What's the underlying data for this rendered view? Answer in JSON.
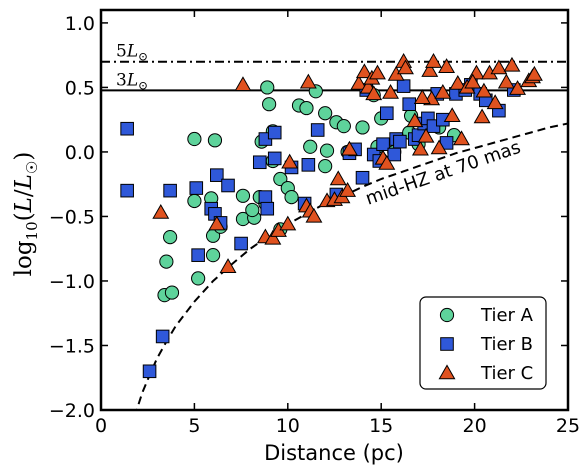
{
  "chart_data": {
    "type": "scatter",
    "xlabel": "Distance (pc)",
    "ylabel": "log10(L/L☉)",
    "ylabel_parts": {
      "pre": "log",
      "sub": "10",
      "paren_open": "(",
      "L": "L",
      "slash": "/",
      "Lsun": "L",
      "sun": "☉",
      "paren_close": ")"
    },
    "xlim": [
      0,
      25
    ],
    "ylim": [
      -2.0,
      1.1
    ],
    "xticks": [
      0,
      5,
      10,
      15,
      20,
      25
    ],
    "xtick_labels": [
      "0",
      "5",
      "10",
      "15",
      "20",
      "25"
    ],
    "yticks": [
      -2.0,
      -1.5,
      -1.0,
      -0.5,
      0.0,
      0.5,
      1.0
    ],
    "ytick_labels": [
      "−2.0",
      "−1.5",
      "−1.0",
      "−0.5",
      "0.0",
      "0.5",
      "1.0"
    ],
    "grid": false,
    "legend_position": "bottom-right",
    "reference_lines": [
      {
        "y": 0.699,
        "style": "dashdot",
        "label_main": "5L",
        "label_sub": "⊙"
      },
      {
        "y": 0.477,
        "style": "solid",
        "label_main": "3L",
        "label_sub": "⊙"
      }
    ],
    "hz_curve": {
      "label": "mid-HZ at 70 mas",
      "x": [
        1.8,
        2.2,
        2.6,
        3.0,
        3.5,
        4.0,
        5.0,
        6.0,
        7.0,
        8.0,
        9.0,
        10.0,
        11.0,
        12.0,
        13.0,
        14.0,
        15.0,
        16.0,
        17.0,
        18.0,
        19.0,
        20.0,
        21.0,
        22.0,
        23.0,
        24.0,
        25.0
      ],
      "y": [
        -2.05,
        -1.87,
        -1.73,
        -1.6,
        -1.47,
        -1.35,
        -1.16,
        -1.0,
        -0.87,
        -0.75,
        -0.65,
        -0.56,
        -0.48,
        -0.4,
        -0.34,
        -0.27,
        -0.21,
        -0.16,
        -0.11,
        -0.06,
        -0.01,
        0.03,
        0.07,
        0.11,
        0.15,
        0.19,
        0.22
      ]
    },
    "series": [
      {
        "name": "Tier A",
        "marker": "circle",
        "color": "#5ed39b",
        "points": [
          [
            3.4,
            -1.11
          ],
          [
            3.8,
            -1.09
          ],
          [
            3.5,
            -0.85
          ],
          [
            3.7,
            -0.66
          ],
          [
            5.0,
            0.1
          ],
          [
            6.1,
            0.09
          ],
          [
            5.2,
            -0.98
          ],
          [
            5.0,
            -0.38
          ],
          [
            5.9,
            -0.36
          ],
          [
            6.0,
            -0.65
          ],
          [
            6.0,
            -0.8
          ],
          [
            6.4,
            -0.58
          ],
          [
            7.6,
            -0.52
          ],
          [
            7.6,
            -0.34
          ],
          [
            8.2,
            -0.51
          ],
          [
            8.1,
            -0.45
          ],
          [
            8.5,
            -0.35
          ],
          [
            8.6,
            0.08
          ],
          [
            8.8,
            -0.4
          ],
          [
            8.9,
            0.5
          ],
          [
            9.2,
            -0.07
          ],
          [
            9.2,
            0.16
          ],
          [
            9.6,
            -0.21
          ],
          [
            9.6,
            -0.6
          ],
          [
            9.0,
            0.37
          ],
          [
            10.0,
            -0.28
          ],
          [
            10.2,
            -0.35
          ],
          [
            10.6,
            0.36
          ],
          [
            11.0,
            0.34
          ],
          [
            11.5,
            0.47
          ],
          [
            11.2,
            0.04
          ],
          [
            12.0,
            0.3
          ],
          [
            12.0,
            -0.11
          ],
          [
            12.6,
            0.23
          ],
          [
            13.0,
            0.2
          ],
          [
            13.2,
            0.0
          ],
          [
            14.0,
            0.19
          ],
          [
            14.6,
            0.44
          ],
          [
            14.8,
            0.04
          ],
          [
            15.0,
            0.26
          ],
          [
            15.7,
            0.0
          ],
          [
            16.5,
            0.15
          ],
          [
            16.6,
            0.28
          ],
          [
            17.0,
            0.06
          ],
          [
            18.1,
            0.19
          ],
          [
            18.9,
            0.13
          ],
          [
            12.1,
            0.01
          ]
        ]
      },
      {
        "name": "Tier B",
        "marker": "square",
        "color": "#2f58d9",
        "points": [
          [
            1.4,
            0.18
          ],
          [
            1.4,
            -0.3
          ],
          [
            2.6,
            -1.7
          ],
          [
            3.3,
            -1.43
          ],
          [
            3.7,
            -0.3
          ],
          [
            5.1,
            -0.28
          ],
          [
            5.2,
            -0.8
          ],
          [
            5.9,
            -0.44
          ],
          [
            6.1,
            -0.48
          ],
          [
            6.2,
            -0.18
          ],
          [
            6.4,
            -0.55
          ],
          [
            6.8,
            -0.26
          ],
          [
            7.5,
            -0.71
          ],
          [
            8.5,
            -0.08
          ],
          [
            8.8,
            -0.35
          ],
          [
            8.8,
            0.1
          ],
          [
            8.9,
            -0.44
          ],
          [
            9.3,
            0.15
          ],
          [
            9.3,
            -0.05
          ],
          [
            10.2,
            -0.12
          ],
          [
            11.1,
            -0.1
          ],
          [
            11.6,
            0.17
          ],
          [
            12.6,
            -0.33
          ],
          [
            13.3,
            -0.01
          ],
          [
            13.6,
            0.02
          ],
          [
            14.0,
            -0.2
          ],
          [
            14.2,
            0.48
          ],
          [
            14.6,
            -0.02
          ],
          [
            14.9,
            -0.07
          ],
          [
            15.1,
            0.06
          ],
          [
            15.3,
            0.3
          ],
          [
            15.7,
            -0.02
          ],
          [
            15.8,
            0.1
          ],
          [
            16.0,
            0.08
          ],
          [
            16.2,
            0.51
          ],
          [
            16.5,
            0.37
          ],
          [
            16.8,
            0.1
          ],
          [
            17.0,
            0.13
          ],
          [
            17.3,
            0.22
          ],
          [
            17.5,
            0.26
          ],
          [
            17.8,
            0.2
          ],
          [
            18.0,
            0.45
          ],
          [
            18.5,
            0.07
          ],
          [
            19.0,
            0.45
          ],
          [
            19.5,
            0.48
          ],
          [
            19.8,
            0.52
          ],
          [
            20.3,
            0.45
          ],
          [
            20.6,
            0.4
          ],
          [
            21.3,
            0.32
          ],
          [
            22.1,
            0.48
          ],
          [
            18.3,
            0.25
          ],
          [
            10.9,
            -0.4
          ]
        ]
      },
      {
        "name": "Tier C",
        "marker": "triangle",
        "color": "#e0521f",
        "points": [
          [
            3.2,
            -0.47
          ],
          [
            6.2,
            -0.56
          ],
          [
            6.8,
            -0.89
          ],
          [
            7.6,
            0.52
          ],
          [
            8.8,
            -0.66
          ],
          [
            9.2,
            -0.67
          ],
          [
            9.5,
            -0.61
          ],
          [
            10.0,
            -0.56
          ],
          [
            10.1,
            -0.08
          ],
          [
            11.0,
            -0.42
          ],
          [
            11.1,
            0.54
          ],
          [
            11.2,
            -0.46
          ],
          [
            11.4,
            -0.5
          ],
          [
            12.1,
            -0.38
          ],
          [
            12.5,
            -0.37
          ],
          [
            12.7,
            -0.21
          ],
          [
            12.9,
            -0.35
          ],
          [
            13.2,
            -0.3
          ],
          [
            13.3,
            0.02
          ],
          [
            13.8,
            0.53
          ],
          [
            14.1,
            0.62
          ],
          [
            14.3,
            0.5
          ],
          [
            14.5,
            0.57
          ],
          [
            14.6,
            0.45
          ],
          [
            14.8,
            0.61
          ],
          [
            15.1,
            -0.05
          ],
          [
            15.3,
            -0.09
          ],
          [
            15.5,
            0.46
          ],
          [
            15.8,
            0.6
          ],
          [
            16.2,
            0.7
          ],
          [
            16.3,
            0.65
          ],
          [
            16.8,
            0.24
          ],
          [
            17.1,
            0.02
          ],
          [
            17.4,
            0.12
          ],
          [
            17.6,
            0.63
          ],
          [
            17.7,
            0.41
          ],
          [
            17.8,
            0.7
          ],
          [
            18.1,
            0.03
          ],
          [
            18.3,
            0.46
          ],
          [
            18.5,
            0.66
          ],
          [
            18.8,
            0.28
          ],
          [
            19.1,
            0.53
          ],
          [
            19.3,
            0.1
          ],
          [
            19.6,
            0.5
          ],
          [
            20.1,
            0.61
          ],
          [
            20.4,
            0.27
          ],
          [
            20.5,
            0.47
          ],
          [
            20.8,
            0.61
          ],
          [
            21.1,
            0.38
          ],
          [
            21.3,
            0.65
          ],
          [
            21.7,
            0.54
          ],
          [
            22.0,
            0.67
          ],
          [
            22.3,
            0.49
          ],
          [
            22.9,
            0.55
          ],
          [
            23.1,
            0.58
          ],
          [
            23.2,
            0.6
          ],
          [
            17.2,
            0.42
          ],
          [
            19.9,
            0.54
          ]
        ]
      }
    ]
  }
}
